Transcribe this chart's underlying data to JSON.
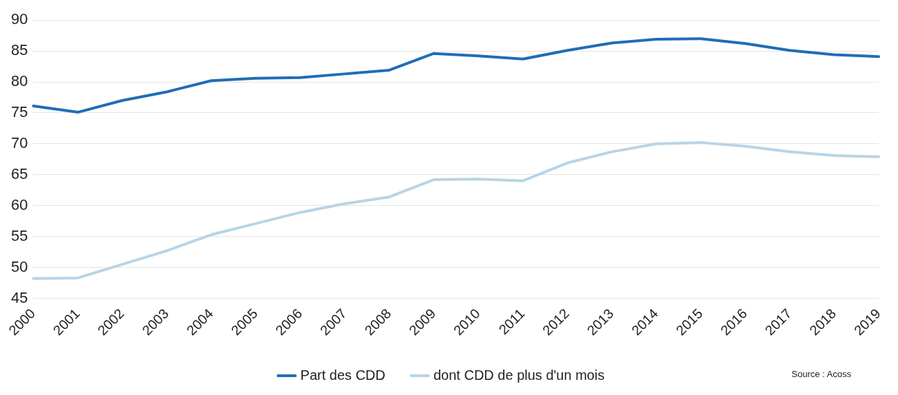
{
  "chart_data": {
    "type": "line",
    "categories": [
      "2000",
      "2001",
      "2002",
      "2003",
      "2004",
      "2005",
      "2006",
      "2007",
      "2008",
      "2009",
      "2010",
      "2011",
      "2012",
      "2013",
      "2014",
      "2015",
      "2016",
      "2017",
      "2018",
      "2019"
    ],
    "series": [
      {
        "name": "Part des CDD",
        "color": "#1f6db5",
        "values": [
          76.1,
          75.1,
          77.0,
          78.4,
          80.2,
          80.6,
          80.7,
          81.3,
          81.9,
          84.6,
          84.2,
          83.7,
          85.1,
          86.3,
          86.9,
          87.0,
          86.2,
          85.1,
          84.4,
          84.1
        ]
      },
      {
        "name": "dont CDD de plus d'un mois",
        "color": "#b8d4e8",
        "values": [
          48.2,
          48.3,
          50.5,
          52.7,
          55.3,
          57.1,
          58.9,
          60.3,
          61.4,
          64.2,
          64.3,
          64.0,
          66.9,
          68.7,
          70.0,
          70.2,
          69.6,
          68.7,
          68.1,
          67.9
        ]
      }
    ],
    "ylim": [
      45,
      90
    ],
    "yticks": [
      45,
      50,
      55,
      60,
      65,
      70,
      75,
      80,
      85,
      90
    ],
    "grid": "y",
    "legend": "bottom",
    "marker": "none",
    "line_style": "solid",
    "annotations": [
      "Source : Acoss"
    ]
  }
}
